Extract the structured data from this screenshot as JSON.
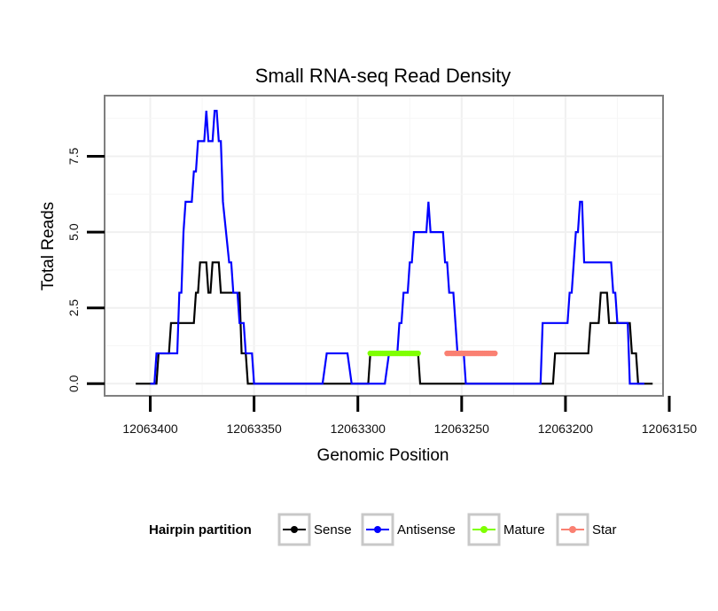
{
  "chart_data": {
    "type": "line",
    "title": "Small RNA-seq Read Density",
    "xlabel": "Genomic Position",
    "ylabel": "Total Reads",
    "xlim": [
      12063153,
      12063422
    ],
    "x_reversed": true,
    "ylim": [
      -0.4,
      9.5
    ],
    "x_ticks": [
      12063400,
      12063350,
      12063300,
      12063250,
      12063200,
      12063150
    ],
    "x_tick_labels": [
      "12063400",
      "12063350",
      "12063300",
      "12063250",
      "12063200",
      "12063150"
    ],
    "y_ticks": [
      0,
      2.5,
      5,
      7.5
    ],
    "y_tick_labels": [
      "0.0",
      "2.5",
      "5.0",
      "7.5"
    ],
    "grid": true,
    "legend": {
      "title": "Hairpin partition",
      "position": "bottom",
      "entries": [
        "Sense",
        "Antisense",
        "Mature",
        "Star"
      ]
    },
    "series": [
      {
        "name": "Sense",
        "color": "#000000",
        "points": [
          [
            12063407,
            0
          ],
          [
            12063397,
            0
          ],
          [
            12063396,
            1
          ],
          [
            12063391,
            1
          ],
          [
            12063390,
            2
          ],
          [
            12063379,
            2
          ],
          [
            12063378,
            3
          ],
          [
            12063377,
            3
          ],
          [
            12063376,
            4
          ],
          [
            12063373,
            4
          ],
          [
            12063372,
            3
          ],
          [
            12063371,
            3
          ],
          [
            12063370,
            4
          ],
          [
            12063367,
            4
          ],
          [
            12063366,
            3
          ],
          [
            12063357,
            3
          ],
          [
            12063356,
            1
          ],
          [
            12063354,
            1
          ],
          [
            12063353,
            0
          ],
          [
            12063295,
            0
          ],
          [
            12063294,
            1
          ],
          [
            12063271,
            1
          ],
          [
            12063270,
            0
          ],
          [
            12063257,
            0
          ],
          [
            12063252,
            0
          ],
          [
            12063206,
            0
          ],
          [
            12063205,
            1
          ],
          [
            12063189,
            1
          ],
          [
            12063188,
            2
          ],
          [
            12063184,
            2
          ],
          [
            12063183,
            3
          ],
          [
            12063180,
            3
          ],
          [
            12063179,
            2
          ],
          [
            12063169,
            2
          ],
          [
            12063168,
            1
          ],
          [
            12063166,
            1
          ],
          [
            12063165,
            0
          ],
          [
            12063158,
            0
          ]
        ]
      },
      {
        "name": "Antisense",
        "color": "#0000ff",
        "points": [
          [
            12063400,
            0
          ],
          [
            12063398,
            0
          ],
          [
            12063397,
            1
          ],
          [
            12063387,
            1
          ],
          [
            12063386,
            3
          ],
          [
            12063385,
            3
          ],
          [
            12063384,
            5
          ],
          [
            12063383,
            6
          ],
          [
            12063380,
            6
          ],
          [
            12063379,
            7
          ],
          [
            12063378,
            7
          ],
          [
            12063377,
            8
          ],
          [
            12063374,
            8
          ],
          [
            12063373,
            9
          ],
          [
            12063372,
            8
          ],
          [
            12063370,
            8
          ],
          [
            12063369,
            9
          ],
          [
            12063368,
            9
          ],
          [
            12063367,
            8
          ],
          [
            12063366,
            8
          ],
          [
            12063365,
            6
          ],
          [
            12063362,
            4
          ],
          [
            12063361,
            4
          ],
          [
            12063360,
            3
          ],
          [
            12063358,
            3
          ],
          [
            12063357,
            2
          ],
          [
            12063355,
            2
          ],
          [
            12063354,
            1
          ],
          [
            12063351,
            1
          ],
          [
            12063350,
            0
          ],
          [
            12063317,
            0
          ],
          [
            12063315,
            1
          ],
          [
            12063305,
            1
          ],
          [
            12063303,
            0
          ],
          [
            12063298,
            0
          ],
          [
            12063297,
            0
          ],
          [
            12063287,
            0
          ],
          [
            12063285,
            1
          ],
          [
            12063281,
            1
          ],
          [
            12063280,
            2
          ],
          [
            12063279,
            2
          ],
          [
            12063278,
            3
          ],
          [
            12063276,
            3
          ],
          [
            12063275,
            4
          ],
          [
            12063274,
            4
          ],
          [
            12063273,
            5
          ],
          [
            12063267,
            5
          ],
          [
            12063266,
            6
          ],
          [
            12063265,
            5
          ],
          [
            12063259,
            5
          ],
          [
            12063258,
            4
          ],
          [
            12063257,
            4
          ],
          [
            12063256,
            3
          ],
          [
            12063254,
            3
          ],
          [
            12063253,
            2
          ],
          [
            12063252,
            1
          ],
          [
            12063249,
            1
          ],
          [
            12063248,
            0
          ],
          [
            12063248,
            0
          ],
          [
            12063222,
            0
          ],
          [
            12063212,
            0
          ],
          [
            12063211,
            2
          ],
          [
            12063199,
            2
          ],
          [
            12063198,
            3
          ],
          [
            12063197,
            3
          ],
          [
            12063196,
            4
          ],
          [
            12063195,
            5
          ],
          [
            12063194,
            5
          ],
          [
            12063193,
            6
          ],
          [
            12063192,
            6
          ],
          [
            12063191,
            4
          ],
          [
            12063178,
            4
          ],
          [
            12063177,
            3
          ],
          [
            12063176,
            3
          ],
          [
            12063175,
            2
          ],
          [
            12063170,
            2
          ],
          [
            12063169,
            0
          ],
          [
            12063162,
            0
          ]
        ]
      },
      {
        "name": "Mature",
        "color": "#7fff00",
        "points": [
          [
            12063294,
            1
          ],
          [
            12063271,
            1
          ]
        ]
      },
      {
        "name": "Star",
        "color": "#fa8072",
        "points": [
          [
            12063257,
            1
          ],
          [
            12063234,
            1
          ]
        ]
      }
    ]
  }
}
